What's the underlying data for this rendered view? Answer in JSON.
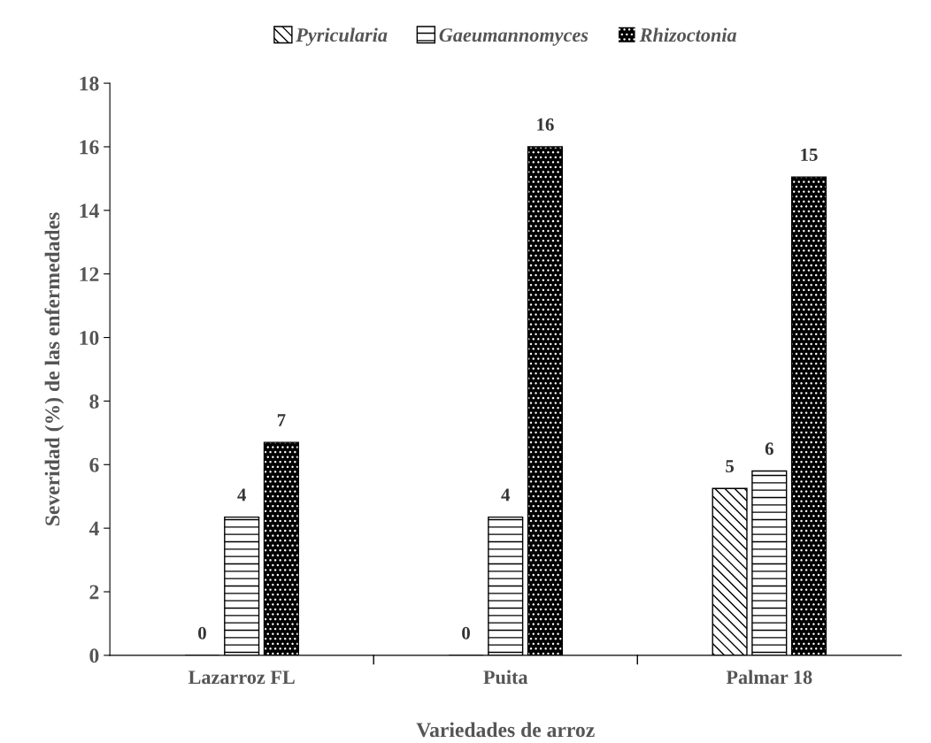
{
  "chart_data": {
    "type": "bar",
    "xlabel": "Variedades de arroz",
    "ylabel": "Severidad (%) de las enfermedades",
    "categories": [
      "Lazarroz FL",
      "Puita",
      "Palmar 18"
    ],
    "series": [
      {
        "name": "Pyricularia",
        "color": "#000000",
        "values": [
          0,
          0,
          5.25
        ],
        "value_labels": [
          "0",
          "0",
          "5"
        ]
      },
      {
        "name": "Gaeumannomyces",
        "color": "#000000",
        "values": [
          4.35,
          4.35,
          5.8
        ],
        "value_labels": [
          "4",
          "4",
          "6"
        ]
      },
      {
        "name": "Rhizoctonia",
        "color": "#000000",
        "values": [
          6.7,
          16.0,
          15.05
        ],
        "value_labels": [
          "7",
          "16",
          "15"
        ]
      }
    ],
    "ylim": [
      0,
      18
    ],
    "yticks": [
      0,
      2,
      4,
      6,
      8,
      10,
      12,
      14,
      16,
      18
    ],
    "grid": false,
    "legend": "top"
  }
}
